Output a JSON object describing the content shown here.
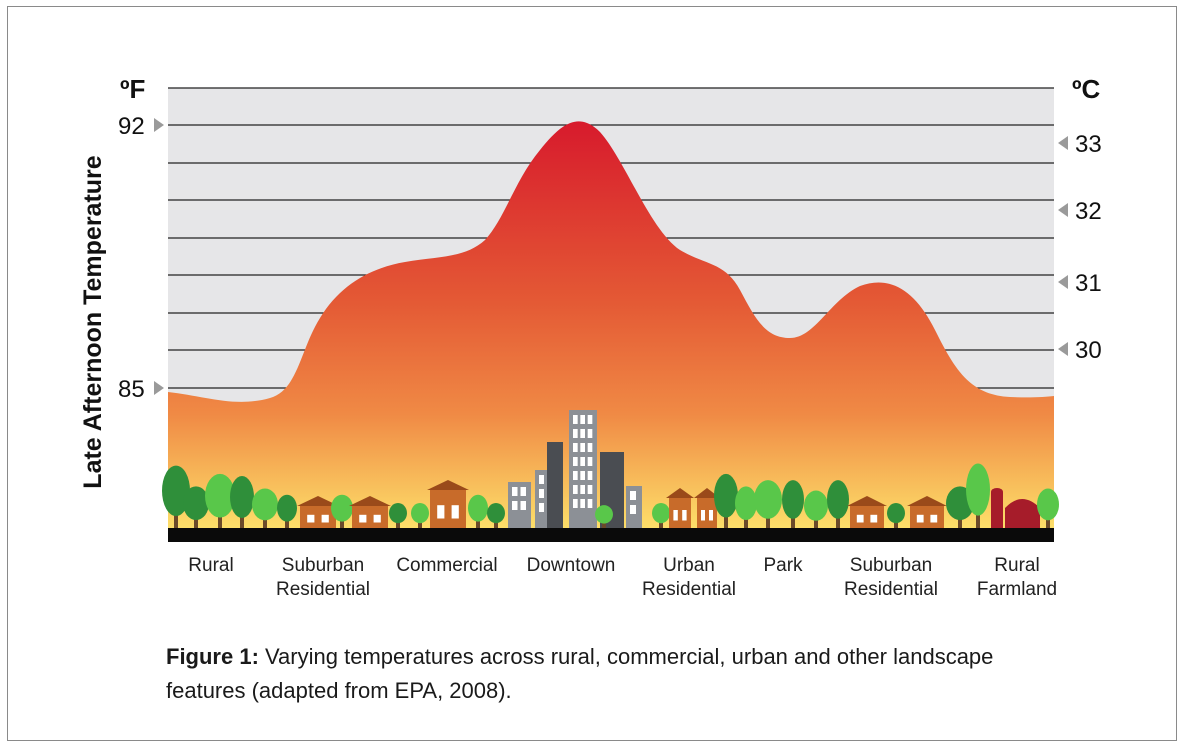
{
  "axis": {
    "left_unit": "ºF",
    "right_unit": "ºC",
    "y_label": "Late Afternoon Temperature",
    "left_ticks": [
      "92",
      "85"
    ],
    "right_ticks": [
      "33",
      "32",
      "31",
      "30"
    ]
  },
  "zones": [
    {
      "line1": "Rural",
      "line2": ""
    },
    {
      "line1": "Suburban",
      "line2": "Residential"
    },
    {
      "line1": "Commercial",
      "line2": ""
    },
    {
      "line1": "Downtown",
      "line2": ""
    },
    {
      "line1": "Urban",
      "line2": "Residential"
    },
    {
      "line1": "Park",
      "line2": ""
    },
    {
      "line1": "Suburban",
      "line2": "Residential"
    },
    {
      "line1": "Rural",
      "line2": "Farmland"
    }
  ],
  "caption": {
    "label": "Figure 1:",
    "text": " Varying temperatures across rural, commercial, urban and other landscape features (adapted from EPA, 2008)."
  },
  "colors": {
    "peak": "#d7192c",
    "mid": "#ea6a3a",
    "base": "#fbd565",
    "sky": "#e6e6e8",
    "ground": "#0a0a0a",
    "tree_dark": "#2f8f3a",
    "tree_light": "#59c74a",
    "house": "#c86b2a",
    "building_gray": "#8c9096",
    "building_dark": "#4a4d52",
    "barn": "#a61c2a"
  }
}
